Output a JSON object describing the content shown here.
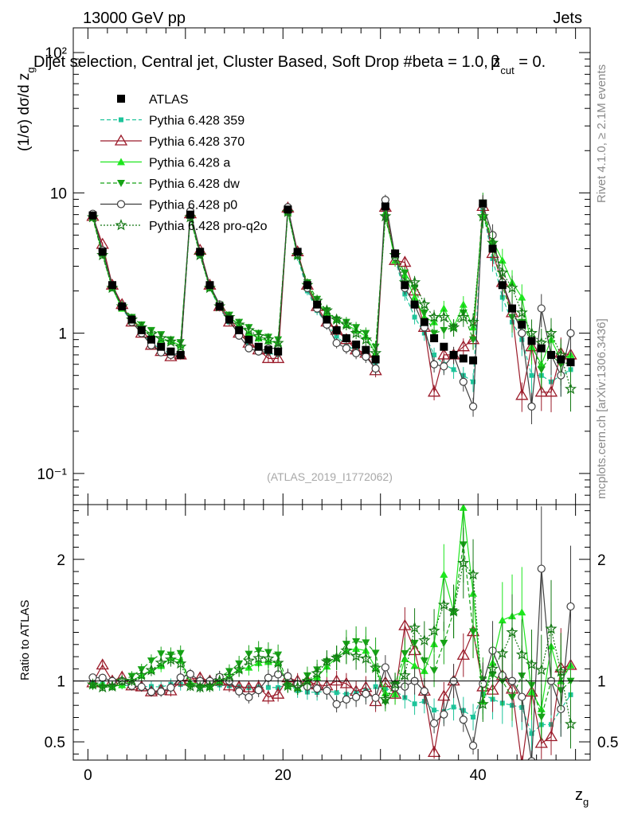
{
  "header": {
    "left": "13000 GeV pp",
    "right": "Jets",
    "selection": "Dijet selection, Central jet, Cluster Based, Soft Drop #beta = 1.0, z",
    "selection_sub": "cut",
    "selection_tail": " = 0.",
    "beta_glyph": "β"
  },
  "side_labels": {
    "rivet": "Rivet 4.1.0, ≥ 2.1M events",
    "mcplots": "mcplots.cern.ch [arXiv:1306.3436]"
  },
  "watermark": "(ATLAS_2019_I1772062)",
  "axes": {
    "ylabel_main": "(1/σ) dσ/d z",
    "ylabel_main_sub": "g",
    "ylabel_ratio": "Ratio to ATLAS",
    "xlabel": "z",
    "xlabel_sub": "g"
  },
  "colors": {
    "atlas": "#000000",
    "p359": "#1ec49a",
    "p370": "#9b1b2a",
    "pa": "#1ee61e",
    "pdw": "#16a216",
    "pp0": "#3f3f3f",
    "pq2o": "#147814"
  },
  "chart_data": {
    "type": "scatter",
    "title": "Dijet selection, Central jet, Cluster Based, Soft Drop beta = 1.0, z_cut = 0.",
    "xlabel": "z_g",
    "ylabel": "(1/sigma) dsigma/d z_g",
    "xlim": [
      -1.5,
      51.5
    ],
    "ylim": [
      0.06,
      150
    ],
    "yscale": "log",
    "x_ticks": [
      "0",
      "20",
      "40"
    ],
    "y_ticks": [
      "10⁻¹",
      "1",
      "10",
      "10²"
    ],
    "ratio_ylim": [
      0.35,
      2.45
    ],
    "ratio_ticks": [
      "0.5",
      "1",
      "2"
    ],
    "x": [
      0.5,
      1.5,
      2.5,
      3.5,
      4.5,
      5.5,
      6.5,
      7.5,
      8.5,
      9.5,
      10.5,
      11.5,
      12.5,
      13.5,
      14.5,
      15.5,
      16.5,
      17.5,
      18.5,
      19.5,
      20.5,
      21.5,
      22.5,
      23.5,
      24.5,
      25.5,
      26.5,
      27.5,
      28.5,
      29.5,
      30.5,
      31.5,
      32.5,
      33.5,
      34.5,
      35.5,
      36.5,
      37.5,
      38.5,
      39.5,
      40.5,
      41.5,
      42.5,
      43.5,
      44.5,
      45.5,
      46.5,
      47.5,
      48.5,
      49.5
    ],
    "legend": [
      "ATLAS",
      "Pythia 6.428 359",
      "Pythia 6.428 370",
      "Pythia 6.428 a",
      "Pythia 6.428 dw",
      "Pythia 6.428 p0",
      "Pythia 6.428 pro-q2o"
    ],
    "series": [
      {
        "name": "ATLAS",
        "style": "atlas",
        "values": [
          6.9,
          3.8,
          2.2,
          1.55,
          1.25,
          1.05,
          0.9,
          0.8,
          0.74,
          0.7,
          7.0,
          3.8,
          2.2,
          1.55,
          1.25,
          1.05,
          0.9,
          0.8,
          0.76,
          0.74,
          7.6,
          3.8,
          2.2,
          1.6,
          1.25,
          1.05,
          0.92,
          0.83,
          0.76,
          0.65,
          8.0,
          3.7,
          2.2,
          1.6,
          1.2,
          0.92,
          0.8,
          0.7,
          0.66,
          0.64,
          8.4,
          4.0,
          2.2,
          1.5,
          1.15,
          0.88,
          0.78,
          0.7,
          0.65,
          0.62
        ]
      },
      {
        "name": "Pythia 6.428 359",
        "style": "p359",
        "values": [
          6.8,
          3.7,
          2.1,
          1.5,
          1.2,
          1.0,
          0.86,
          0.76,
          0.72,
          0.68,
          6.8,
          3.6,
          2.1,
          1.5,
          1.2,
          1.0,
          0.85,
          0.76,
          0.72,
          0.7,
          7.4,
          3.5,
          2.0,
          1.45,
          1.15,
          0.95,
          0.82,
          0.75,
          0.7,
          0.62,
          7.5,
          3.4,
          1.9,
          1.3,
          1.0,
          0.7,
          0.6,
          0.55,
          0.5,
          0.45,
          7.5,
          3.4,
          1.8,
          1.2,
          0.9,
          0.5,
          0.5,
          0.45,
          0.5,
          0.55
        ]
      },
      {
        "name": "Pythia 6.428 370",
        "style": "p370",
        "values": [
          6.8,
          4.3,
          2.2,
          1.6,
          1.2,
          1.0,
          0.82,
          0.74,
          0.68,
          0.7,
          7.1,
          3.9,
          2.2,
          1.55,
          1.2,
          1.0,
          0.85,
          0.76,
          0.66,
          0.66,
          7.8,
          3.8,
          2.2,
          1.55,
          1.2,
          1.05,
          0.9,
          0.76,
          0.72,
          0.54,
          7.9,
          3.3,
          3.2,
          2.0,
          1.1,
          0.38,
          0.7,
          0.7,
          0.8,
          0.9,
          8.0,
          3.7,
          2.3,
          1.4,
          0.36,
          0.8,
          0.38,
          0.38,
          0.72,
          0.7
        ]
      },
      {
        "name": "Pythia 6.428 a",
        "style": "pa",
        "values": [
          6.7,
          3.7,
          2.1,
          1.5,
          1.25,
          1.1,
          0.98,
          0.9,
          0.88,
          0.82,
          6.9,
          3.7,
          2.1,
          1.55,
          1.3,
          1.15,
          1.0,
          0.92,
          0.88,
          0.85,
          7.3,
          3.6,
          2.2,
          1.65,
          1.4,
          1.25,
          1.15,
          1.05,
          0.95,
          0.72,
          7.2,
          3.3,
          2.6,
          1.8,
          1.3,
          1.2,
          1.5,
          1.1,
          1.6,
          1.1,
          7.0,
          4.6,
          3.3,
          2.3,
          1.8,
          0.8,
          0.6,
          0.9,
          0.65,
          0.7
        ]
      },
      {
        "name": "Pythia 6.428 dw",
        "style": "pdw",
        "values": [
          6.6,
          3.6,
          2.1,
          1.55,
          1.3,
          1.15,
          1.05,
          0.98,
          0.9,
          0.86,
          6.7,
          3.6,
          2.1,
          1.6,
          1.35,
          1.2,
          1.1,
          1.0,
          0.94,
          0.9,
          7.3,
          3.6,
          2.3,
          1.75,
          1.45,
          1.25,
          1.2,
          1.1,
          1.0,
          0.8,
          6.6,
          3.6,
          2.7,
          2.1,
          1.4,
          1.0,
          1.05,
          1.1,
          1.4,
          0.9,
          8.5,
          4.2,
          2.2,
          1.3,
          1.2,
          0.85,
          0.55,
          0.7,
          0.6,
          0.62
        ]
      },
      {
        "name": "Pythia 6.428 p0",
        "style": "pp0",
        "values": [
          7.1,
          3.9,
          2.2,
          1.55,
          1.2,
          1.0,
          0.82,
          0.73,
          0.7,
          0.72,
          7.4,
          3.8,
          2.2,
          1.6,
          1.25,
          0.96,
          0.78,
          0.74,
          0.78,
          0.78,
          7.9,
          3.7,
          2.1,
          1.5,
          1.15,
          0.85,
          0.78,
          0.72,
          0.68,
          0.56,
          8.9,
          3.5,
          2.1,
          1.6,
          1.1,
          0.6,
          0.58,
          0.7,
          0.45,
          0.3,
          8.2,
          5.0,
          2.3,
          1.5,
          1.0,
          0.3,
          1.5,
          0.7,
          0.5,
          1.0
        ]
      },
      {
        "name": "Pythia 6.428 pro-q2o",
        "style": "pq2o",
        "values": [
          6.7,
          3.6,
          2.1,
          1.55,
          1.25,
          1.1,
          0.98,
          0.92,
          0.87,
          0.8,
          6.7,
          3.6,
          2.1,
          1.55,
          1.3,
          1.15,
          1.05,
          0.95,
          0.9,
          0.85,
          7.3,
          3.6,
          2.2,
          1.7,
          1.45,
          1.25,
          1.15,
          1.0,
          0.9,
          0.72,
          6.8,
          3.6,
          2.3,
          2.3,
          1.6,
          1.3,
          1.3,
          1.1,
          1.3,
          1.2,
          6.8,
          4.4,
          2.7,
          2.1,
          1.4,
          1.0,
          0.85,
          1.0,
          0.7,
          0.4
        ]
      }
    ]
  }
}
